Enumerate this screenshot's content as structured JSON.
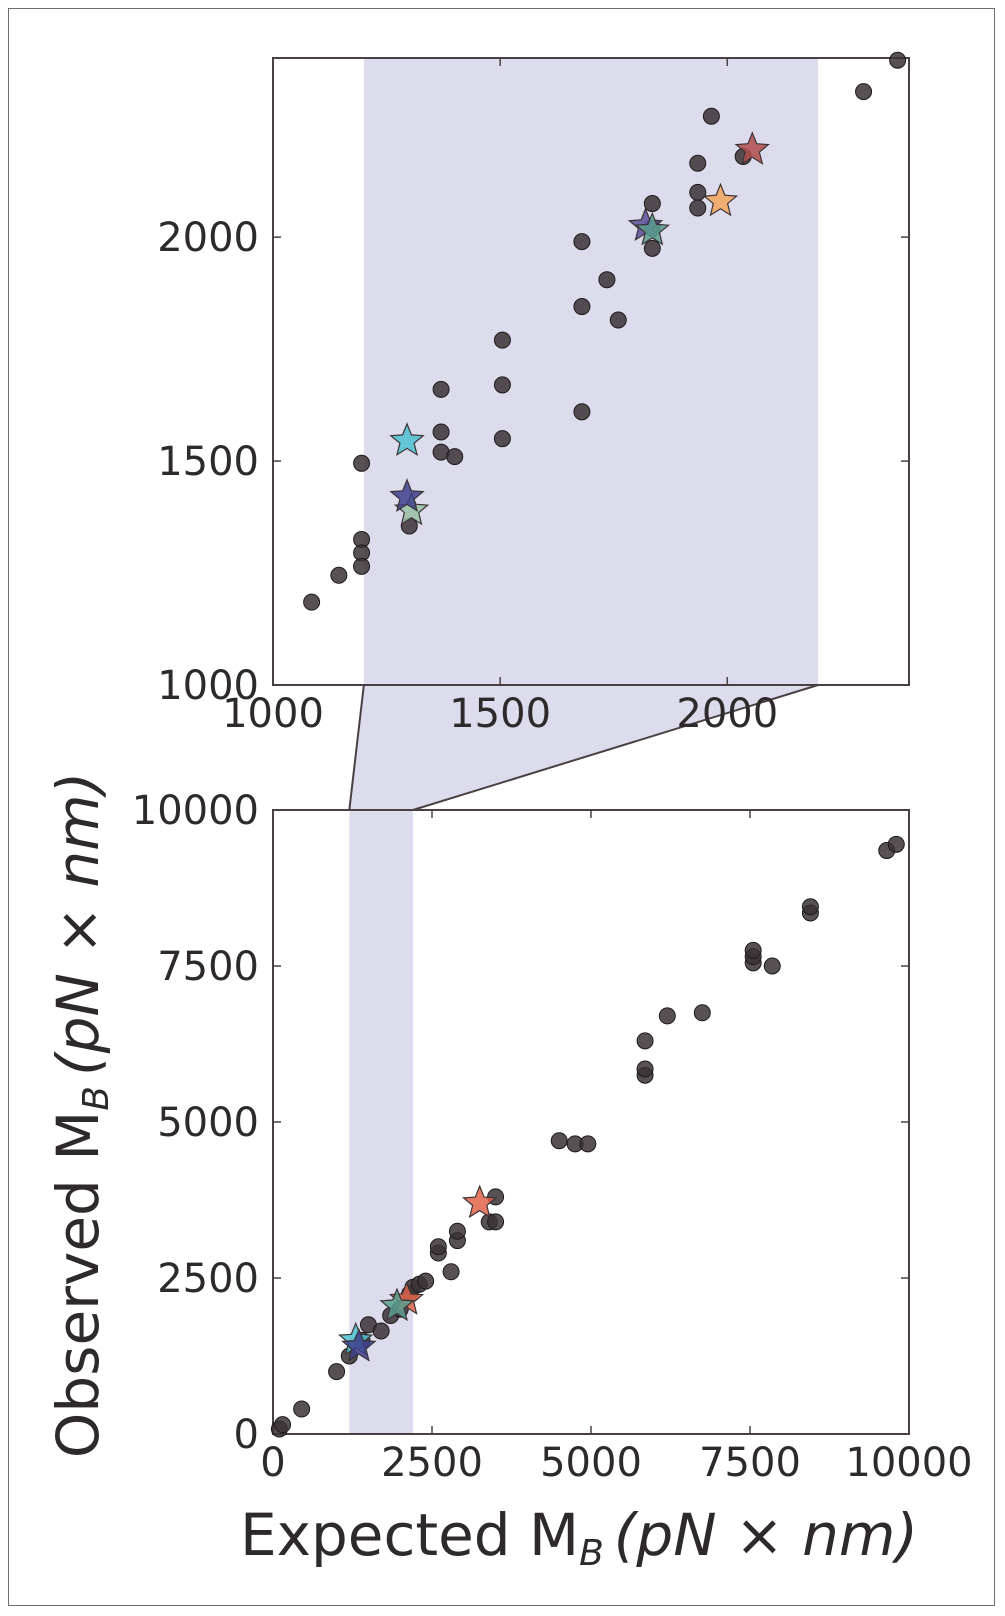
{
  "colors": {
    "highlight": "#dcdcec",
    "axis": "#4a4044",
    "dot": "#3a3336",
    "tick_text": "#2e2a2c"
  },
  "bottom_axis_label": {
    "prefix": "Expected M",
    "sub": "B",
    "units": "(pN × nm)"
  },
  "left_axis_label": {
    "prefix": "Observed M",
    "sub": "B",
    "units": "(pN × nm)"
  },
  "chart_data": [
    {
      "id": "inset",
      "type": "scatter",
      "title": "",
      "xlabel": "",
      "ylabel": "",
      "xlim": [
        1000,
        2400
      ],
      "ylim": [
        1000,
        2400
      ],
      "xticks": [
        1000,
        1500,
        2000
      ],
      "xtick_labels": [
        "1000",
        "1500",
        "2000"
      ],
      "yticks": [
        1000,
        1500,
        2000
      ],
      "ytick_labels": [
        "1000",
        "1500",
        "2000"
      ],
      "grid": false,
      "highlight_span_x": [
        1200,
        2200
      ],
      "series": [
        {
          "marker": "circle",
          "points": [
            [
              1085,
              1185
            ],
            [
              1145,
              1245
            ],
            [
              1195,
              1495
            ],
            [
              1195,
              1325
            ],
            [
              1195,
              1295
            ],
            [
              1195,
              1265
            ],
            [
              1300,
              1355
            ],
            [
              1370,
              1660
            ],
            [
              1370,
              1565
            ],
            [
              1370,
              1520
            ],
            [
              1400,
              1510
            ],
            [
              1505,
              1770
            ],
            [
              1505,
              1670
            ],
            [
              1505,
              1550
            ],
            [
              1680,
              1990
            ],
            [
              1680,
              1845
            ],
            [
              1680,
              1610
            ],
            [
              1735,
              1905
            ],
            [
              1760,
              1815
            ],
            [
              1835,
              2075
            ],
            [
              1835,
              2020
            ],
            [
              1835,
              1975
            ],
            [
              1935,
              2165
            ],
            [
              1935,
              2100
            ],
            [
              1935,
              2065
            ],
            [
              1965,
              2270
            ],
            [
              2035,
              2180
            ],
            [
              2300,
              2325
            ],
            [
              2375,
              2395
            ]
          ]
        },
        {
          "marker": "star",
          "points": [
            [
              1295,
              1545,
              "#4fc0cf"
            ],
            [
              1305,
              1390,
              "#9ac0a6"
            ],
            [
              1295,
              1420,
              "#3d3f8c"
            ],
            [
              1820,
              2025,
              "#5c4f9a"
            ],
            [
              1835,
              2015,
              "#5a9f8f"
            ],
            [
              1985,
              2080,
              "#f2a55c"
            ],
            [
              2055,
              2195,
              "#b24c4c"
            ]
          ]
        }
      ]
    },
    {
      "id": "main",
      "type": "scatter",
      "title": "",
      "xlabel": "Expected M_B (pN × nm)",
      "ylabel": "Observed M_B (pN × nm)",
      "xlim": [
        0,
        10000
      ],
      "ylim": [
        0,
        10000
      ],
      "xticks": [
        0,
        2500,
        5000,
        7500,
        10000
      ],
      "xtick_labels": [
        "0",
        "2500",
        "5000",
        "7500",
        "10000"
      ],
      "yticks": [
        0,
        2500,
        5000,
        7500,
        10000
      ],
      "ytick_labels": [
        "0",
        "2500",
        "5000",
        "7500",
        "10000"
      ],
      "grid": false,
      "highlight_span_x": [
        1200,
        2200
      ],
      "series": [
        {
          "marker": "circle",
          "points": [
            [
              100,
              80
            ],
            [
              150,
              150
            ],
            [
              450,
              400
            ],
            [
              1000,
              1000
            ],
            [
              1200,
              1250
            ],
            [
              1400,
              1500
            ],
            [
              1500,
              1750
            ],
            [
              1700,
              1650
            ],
            [
              1850,
              1900
            ],
            [
              2000,
              2000
            ],
            [
              2150,
              2250
            ],
            [
              2200,
              2350
            ],
            [
              2300,
              2400
            ],
            [
              2400,
              2450
            ],
            [
              2600,
              2900
            ],
            [
              2600,
              3000
            ],
            [
              2800,
              2600
            ],
            [
              2900,
              3100
            ],
            [
              2900,
              3250
            ],
            [
              3400,
              3400
            ],
            [
              3500,
              3400
            ],
            [
              3500,
              3800
            ],
            [
              4500,
              4700
            ],
            [
              4750,
              4650
            ],
            [
              4950,
              4650
            ],
            [
              5850,
              5750
            ],
            [
              5850,
              5850
            ],
            [
              5850,
              6300
            ],
            [
              6200,
              6700
            ],
            [
              6750,
              6750
            ],
            [
              7550,
              7550
            ],
            [
              7550,
              7650
            ],
            [
              7550,
              7750
            ],
            [
              7850,
              7500
            ],
            [
              8450,
              8350
            ],
            [
              8450,
              8450
            ],
            [
              9650,
              9350
            ],
            [
              9800,
              9450
            ]
          ]
        },
        {
          "marker": "star",
          "points": [
            [
              1300,
              1500,
              "#4fc0cf"
            ],
            [
              1350,
              1400,
              "#3d3f8c"
            ],
            [
              2100,
              2150,
              "#e0634a"
            ],
            [
              1950,
              2050,
              "#5a9f8f"
            ],
            [
              3250,
              3700,
              "#e0634a"
            ]
          ]
        }
      ]
    }
  ]
}
